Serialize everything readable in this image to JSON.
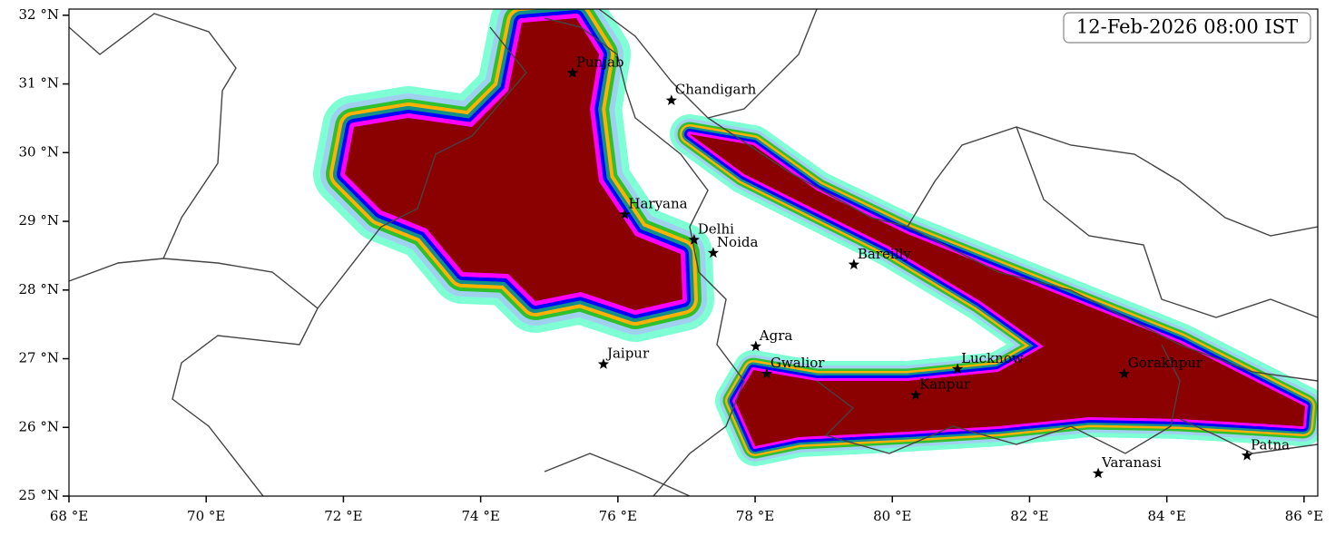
{
  "map": {
    "title_box": "12-Feb-2026 08:00 IST",
    "xlim": [
      68,
      86.2
    ],
    "ylim": [
      25,
      32.09
    ],
    "xticks": [
      {
        "value": 68,
        "label": "68 °E"
      },
      {
        "value": 70,
        "label": "70 °E"
      },
      {
        "value": 72,
        "label": "72 °E"
      },
      {
        "value": 74,
        "label": "74 °E"
      },
      {
        "value": 76,
        "label": "76 °E"
      },
      {
        "value": 78,
        "label": "78 °E"
      },
      {
        "value": 80,
        "label": "80 °E"
      },
      {
        "value": 82,
        "label": "82 °E"
      },
      {
        "value": 84,
        "label": "84 °E"
      },
      {
        "value": 86,
        "label": "86 °E"
      }
    ],
    "yticks": [
      {
        "value": 25,
        "label": "25 °N"
      },
      {
        "value": 26,
        "label": "26 °N"
      },
      {
        "value": 27,
        "label": "27 °N"
      },
      {
        "value": 28,
        "label": "28 °N"
      },
      {
        "value": 29,
        "label": "29 °N"
      },
      {
        "value": 30,
        "label": "30 °N"
      },
      {
        "value": 31,
        "label": "31 °N"
      },
      {
        "value": 32,
        "label": "32 °N"
      }
    ],
    "cities": [
      {
        "name": "Punjab",
        "lon": 75.34,
        "lat": 31.16
      },
      {
        "name": "Chandigarh",
        "lon": 76.78,
        "lat": 30.76
      },
      {
        "name": "Haryana",
        "lon": 76.1,
        "lat": 29.1
      },
      {
        "name": "Delhi",
        "lon": 77.11,
        "lat": 28.73
      },
      {
        "name": "Noida",
        "lon": 77.39,
        "lat": 28.54
      },
      {
        "name": "Bareilly",
        "lon": 79.44,
        "lat": 28.37
      },
      {
        "name": "Agra",
        "lon": 78.01,
        "lat": 27.18
      },
      {
        "name": "Jaipur",
        "lon": 75.79,
        "lat": 26.92
      },
      {
        "name": "Gwalior",
        "lon": 78.17,
        "lat": 26.78
      },
      {
        "name": "Lucknow",
        "lon": 80.95,
        "lat": 26.85
      },
      {
        "name": "Kanpur",
        "lon": 80.34,
        "lat": 26.47
      },
      {
        "name": "Gorakhpur",
        "lon": 83.38,
        "lat": 26.78
      },
      {
        "name": "Varanasi",
        "lon": 83.0,
        "lat": 25.33
      },
      {
        "name": "Patna",
        "lon": 85.17,
        "lat": 25.59
      }
    ]
  }
}
